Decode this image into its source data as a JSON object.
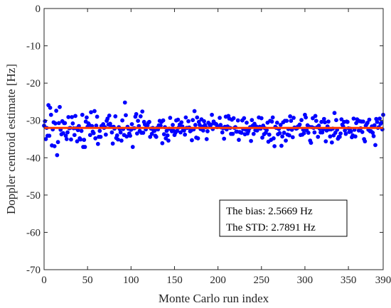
{
  "chart_data": {
    "type": "scatter",
    "title": "",
    "xlabel": "Monte Carlo run index",
    "ylabel": "Doppler centroid estimate [Hz]",
    "xlim": [
      0,
      390
    ],
    "ylim": [
      -70,
      0
    ],
    "xticks": [
      0,
      50,
      100,
      150,
      200,
      250,
      300,
      350,
      390
    ],
    "yticks": [
      0,
      -10,
      -20,
      -30,
      -40,
      -50,
      -60,
      -70
    ],
    "grid": false,
    "annotation_lines": [
      "The bias: 2.5669 Hz",
      "The STD: 2.7891 Hz"
    ],
    "annotation_placement": "lower-right",
    "mean_line": {
      "y": -32.0,
      "color": "#ff3c00"
    },
    "marker_color": "#0000ff",
    "series": [
      {
        "values": [
          -31.4,
          -30.2,
          -35.0,
          -32.0,
          -34.1,
          -25.9,
          -34.1,
          -26.6,
          -28.5,
          -36.7,
          -32.4,
          -30.5,
          -36.9,
          -30.8,
          -27.4,
          -39.3,
          -35.8,
          -30.7,
          -26.4,
          -32.5,
          -33.7,
          -30.2,
          -33.4,
          -30.7,
          -30.7,
          -34.1,
          -35.0,
          -33.2,
          -29.1,
          -32.1,
          -32.0,
          -35.1,
          -29.1,
          -30.8,
          -32.1,
          -33.9,
          -28.8,
          -32.1,
          -35.6,
          -32.6,
          -31.5,
          -34.8,
          -35.1,
          -32.8,
          -28.5,
          -37.1,
          -35.2,
          -37.1,
          -30.3,
          -29.2,
          -31.7,
          -30.8,
          -31.2,
          -33.9,
          -27.8,
          -31.5,
          -33.0,
          -33.4,
          -27.5,
          -34.8,
          -31.4,
          -29.0,
          -36.3,
          -34.4,
          -32.8,
          -34.4,
          -31.5,
          -31.6,
          -31.0,
          -32.0,
          -31.8,
          -33.8,
          -30.1,
          -29.5,
          -31.1,
          -28.7,
          -30.9,
          -31.7,
          -33.2,
          -36.2,
          -31.7,
          -32.2,
          -28.9,
          -34.7,
          -34.0,
          -35.1,
          -31.8,
          -32.3,
          -33.2,
          -35.4,
          -30.0,
          -32.3,
          -33.9,
          -25.2,
          -28.6,
          -34.3,
          -31.7,
          -32.2,
          -33.5,
          -34.1,
          -32.5,
          -31.0,
          -37.1,
          -32.1,
          -32.1,
          -29.0,
          -28.3,
          -33.5,
          -30.1,
          -31.5,
          -32.8,
          -28.9,
          -33.3,
          -27.6,
          -33.3,
          -30.4,
          -31.1,
          -32.4,
          -31.7,
          -31.3,
          -30.6,
          -30.4,
          -34.4,
          -32.2,
          -33.6,
          -32.0,
          -32.8,
          -32.8,
          -34.1,
          -34.4,
          -32.0,
          -32.4,
          -31.3,
          -30.1,
          -31.4,
          -30.4,
          -36.1,
          -30.0,
          -33.7,
          -31.8,
          -34.8,
          -32.8,
          -34.0,
          -35.4,
          -32.2,
          -29.3,
          -32.4,
          -32.9,
          -31.2,
          -32.8,
          -33.9,
          -33.3,
          -30.0,
          -32.8,
          -29.8,
          -31.9,
          -31.1,
          -33.2,
          -30.5,
          -31.6,
          -32.5,
          -32.7,
          -33.8,
          -29.2,
          -32.0,
          -32.0,
          -30.2,
          -31.9,
          -32.9,
          -32.7,
          -35.3,
          -29.9,
          -32.4,
          -27.5,
          -31.2,
          -34.6,
          -29.2,
          -34.8,
          -30.4,
          -31.2,
          -32.3,
          -29.7,
          -31.7,
          -32.7,
          -30.2,
          -31.2,
          -31.8,
          -35.0,
          -32.9,
          -30.6,
          -31.0,
          -31.7,
          -31.1,
          -28.5,
          -32.3,
          -30.3,
          -30.8,
          -30.9,
          -31.0,
          -31.8,
          -31.6,
          -31.6,
          -29.3,
          -31.2,
          -31.9,
          -33.2,
          -32.1,
          -34.9,
          -31.7,
          -29.0,
          -32.4,
          -31.6,
          -28.8,
          -29.5,
          -32.0,
          -33.6,
          -29.8,
          -33.6,
          -29.4,
          -32.0,
          -31.8,
          -33.0,
          -33.0,
          -30.0,
          -35.2,
          -33.1,
          -33.2,
          -33.3,
          -30.0,
          -32.3,
          -29.4,
          -33.7,
          -32.5,
          -30.6,
          -33.5,
          -32.9,
          -32.2,
          -31.8,
          -35.5,
          -29.9,
          -31.4,
          -33.6,
          -30.9,
          -32.6,
          -31.6,
          -32.7,
          -32.1,
          -29.2,
          -31.7,
          -32.2,
          -29.4,
          -34.6,
          -31.4,
          -33.7,
          -32.1,
          -33.3,
          -32.6,
          -30.6,
          -35.7,
          -33.8,
          -30.1,
          -35.2,
          -30.3,
          -29.2,
          -34.8,
          -36.9,
          -31.7,
          -32.0,
          -30.6,
          -33.7,
          -32.3,
          -33.4,
          -31.2,
          -36.8,
          -34.3,
          -30.5,
          -33.3,
          -30.1,
          -35.4,
          -30.1,
          -33.8,
          -32.3,
          -34.0,
          -28.9,
          -30.1,
          -32.5,
          -34.5,
          -29.3,
          -31.9,
          -32.0,
          -32.2,
          -32.1,
          -31.6,
          -31.5,
          -31.1,
          -33.9,
          -29.9,
          -33.8,
          -32.5,
          -33.4,
          -28.5,
          -29.2,
          -32.6,
          -31.3,
          -33.3,
          -31.7,
          -35.4,
          -36.0,
          -31.8,
          -29.4,
          -32.0,
          -33.2,
          -28.8,
          -30.1,
          -31.8,
          -34.4,
          -31.4,
          -32.2,
          -33.2,
          -30.4,
          -33.2,
          -32.4,
          -29.6,
          -30.5,
          -35.6,
          -32.7,
          -31.6,
          -30.3,
          -32.4,
          -34.3,
          -32.4,
          -35.9,
          -32.2,
          -34.0,
          -28.0,
          -33.3,
          -29.9,
          -32.5,
          -34.9,
          -34.4,
          -34.4,
          -33.5,
          -29.7,
          -31.1,
          -31.6,
          -30.4,
          -32.7,
          -33.6,
          -30.3,
          -30.4,
          -32.1,
          -33.1,
          -32.2,
          -33.0,
          -34.5,
          -34.0,
          -29.5,
          -32.5,
          -34.3,
          -30.7,
          -29.7,
          -30.0,
          -32.7,
          -30.2,
          -32.1,
          -30.3,
          -33.1,
          -30.3,
          -35.0,
          -35.6,
          -31.4,
          -31.0,
          -30.6,
          -32.5,
          -29.8,
          -32.9,
          -32.9,
          -31.6,
          -33.3,
          -34.2,
          -31.3,
          -36.6,
          -29.6,
          -30.4,
          -32.0,
          -31.8,
          -29.5,
          -30.9,
          -30.6,
          -32.4,
          -28.5
        ]
      }
    ]
  }
}
